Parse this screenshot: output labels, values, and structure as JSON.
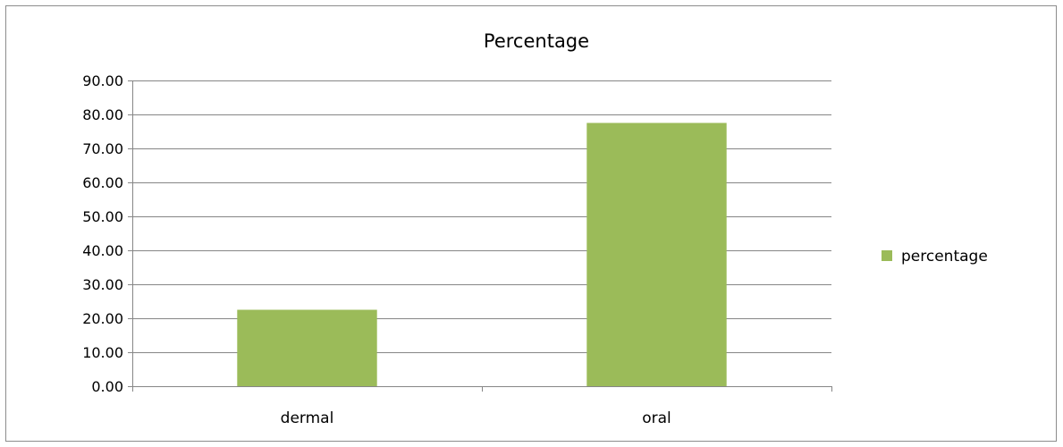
{
  "chart_data": {
    "type": "bar",
    "title": "Percentage",
    "categories": [
      "dermal",
      "oral"
    ],
    "series": [
      {
        "name": "percentage",
        "values": [
          22.5,
          77.5
        ],
        "color": "#9bbb59"
      }
    ],
    "ylim": [
      0,
      90
    ],
    "yticks": [
      "0.00",
      "10.00",
      "20.00",
      "30.00",
      "40.00",
      "50.00",
      "60.00",
      "70.00",
      "80.00",
      "90.00"
    ],
    "ytick_values": [
      0,
      10,
      20,
      30,
      40,
      50,
      60,
      70,
      80,
      90
    ],
    "grid": true,
    "legend_position": "right",
    "gridline_color": "#868686",
    "axis_color": "#868686"
  }
}
